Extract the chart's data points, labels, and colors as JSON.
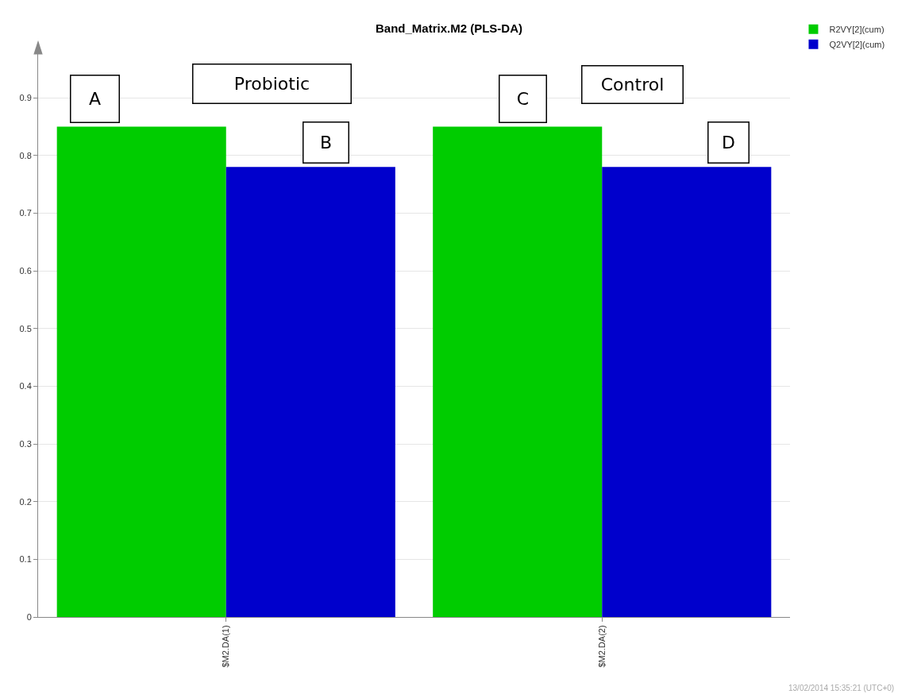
{
  "chart_data": {
    "type": "bar",
    "title": "Band_Matrix.M2 (PLS-DA)",
    "categories": [
      "$M2.DA(1)",
      "$M2.DA(2)"
    ],
    "series": [
      {
        "name": "R2VY[2](cum)",
        "color": "#00cc00",
        "values": [
          0.85,
          0.85
        ]
      },
      {
        "name": "Q2VY[2](cum)",
        "color": "#0000cc",
        "values": [
          0.78,
          0.78
        ]
      }
    ],
    "ylim": [
      0,
      0.98
    ],
    "yticks": [
      0,
      0.1,
      0.2,
      0.3,
      0.4,
      0.5,
      0.6,
      0.7,
      0.8,
      0.9
    ],
    "grid": "y",
    "legend": "top right",
    "annotations": [
      "A",
      "Probiotic",
      "B",
      "C",
      "Control",
      "D",
      "13/02/2014 15:35:21 (UTC+0)"
    ]
  }
}
